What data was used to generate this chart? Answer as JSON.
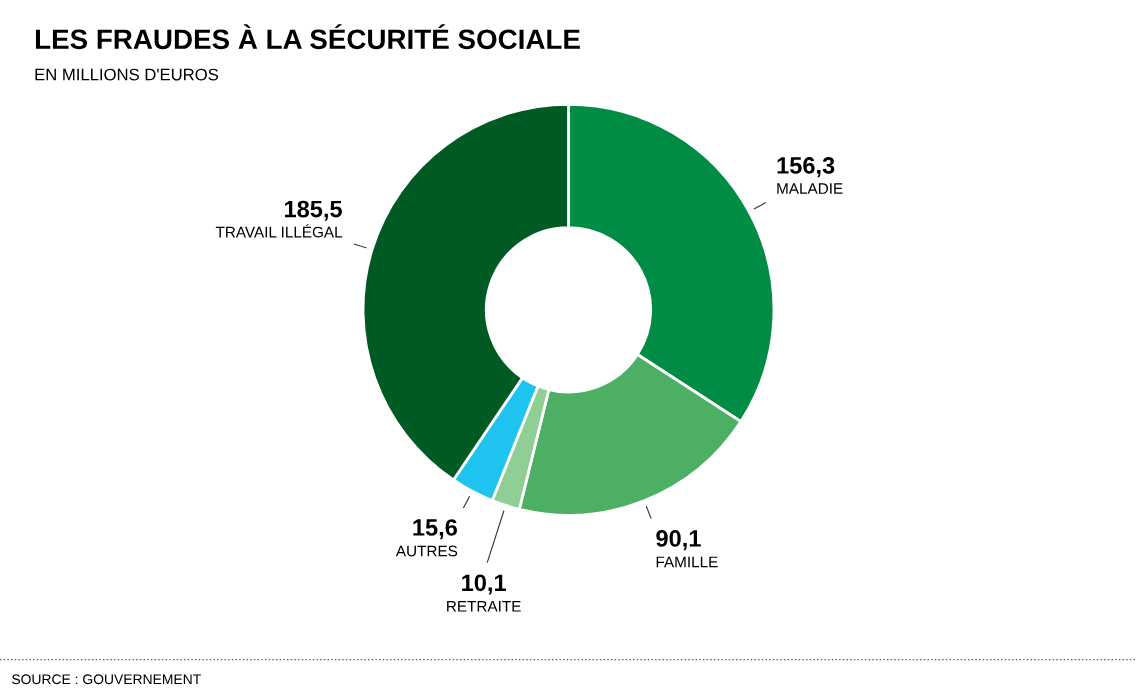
{
  "chart_data": {
    "type": "donut",
    "title": "LES FRAUDES À LA SÉCURITÉ SOCIALE",
    "subtitle": "EN MILLIONS D'EUROS",
    "categories": [
      "MALADIE",
      "FAMILLE",
      "RETRAITE",
      "AUTRES",
      "TRAVAIL ILLÉGAL"
    ],
    "values": [
      156.3,
      90.1,
      10.1,
      15.6,
      185.5
    ],
    "value_labels": [
      "156,3",
      "90,1",
      "10,1",
      "15,6",
      "185,5"
    ],
    "colors": [
      "#008c44",
      "#4caf64",
      "#8fcf95",
      "#1ec3ef",
      "#005a24"
    ],
    "legend": false,
    "annotations": [
      "SOURCE : GOUVERNEMENT"
    ]
  }
}
